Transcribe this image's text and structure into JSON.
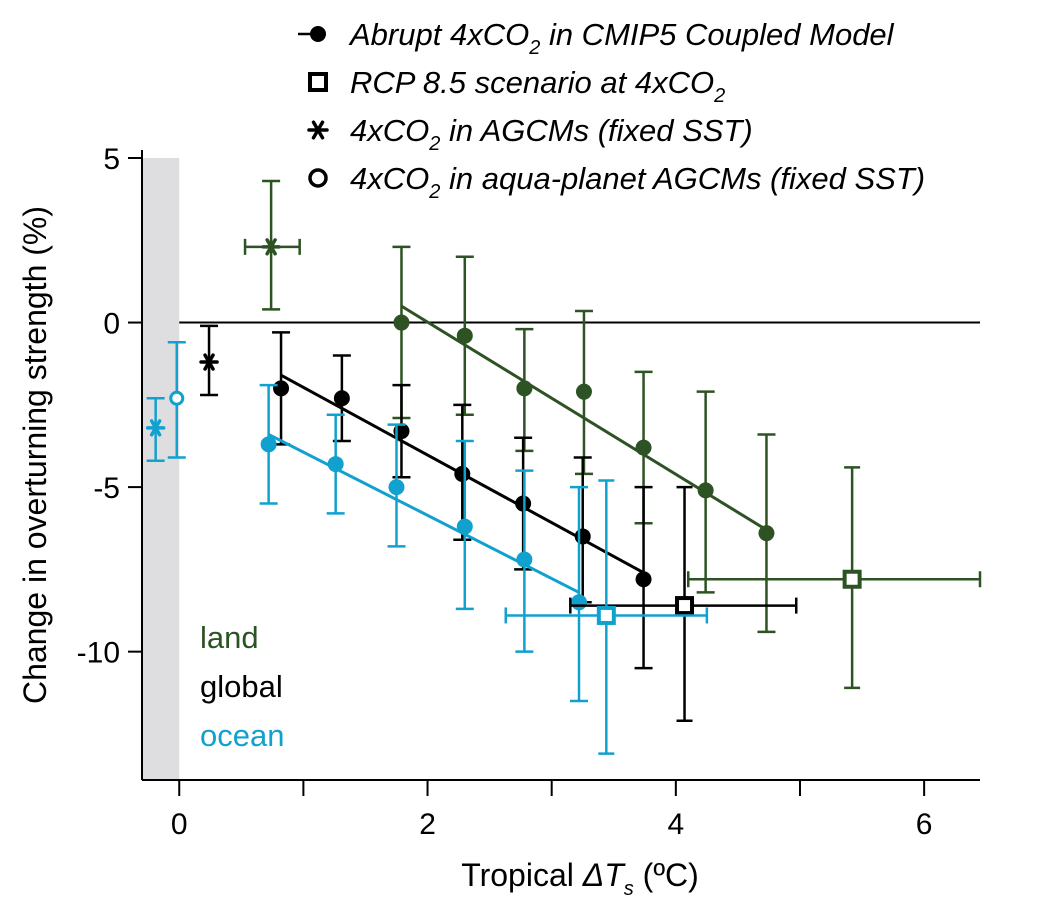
{
  "chart_data": {
    "type": "scatter",
    "xlabel_main": "Tropical ",
    "xlabel_delta": "ΔT",
    "xlabel_sub": "s",
    "xlabel_unit": " (ºC)",
    "ylabel": "Change in overturning strength (%)",
    "xlim": [
      -0.3,
      6.45
    ],
    "ylim": [
      -13.9,
      5.0
    ],
    "x_ticks": [
      0,
      1,
      2,
      3,
      4,
      5,
      6
    ],
    "x_tick_labels": [
      {
        "value": 0,
        "label": "0"
      },
      {
        "value": 2,
        "label": "2"
      },
      {
        "value": 4,
        "label": "4"
      },
      {
        "value": 6,
        "label": "6"
      }
    ],
    "y_ticks": [
      {
        "value": 5,
        "label": "5"
      },
      {
        "value": 0,
        "label": "0"
      },
      {
        "value": -5,
        "label": "-5"
      },
      {
        "value": -10,
        "label": "-10"
      }
    ],
    "zero_line": 0,
    "shaded_band": {
      "x0": -0.3,
      "x1": 0
    },
    "colors": {
      "land": "#2d5223",
      "global": "#000000",
      "ocean": "#11a1cf",
      "shade": "#dedee0"
    },
    "legend": [
      {
        "marker": "line-dot",
        "text": "Abrupt 4xCO",
        "sub": "2",
        "after": " in CMIP5 Coupled Model"
      },
      {
        "marker": "square",
        "text": "RCP 8.5 scenario at 4xCO",
        "sub": "2",
        "after": ""
      },
      {
        "marker": "star",
        "text": "4xCO",
        "sub": "2",
        "after": "  in AGCMs (fixed SST)"
      },
      {
        "marker": "circle",
        "text": "4xCO",
        "sub": "2",
        "after": "  in aqua-planet AGCMs (fixed SST)"
      }
    ],
    "region_labels": [
      {
        "key": "land",
        "text": "land"
      },
      {
        "key": "global",
        "text": "global"
      },
      {
        "key": "ocean",
        "text": "ocean"
      }
    ],
    "series": [
      {
        "key": "land",
        "kind": "coupled",
        "points": [
          {
            "x": 1.79,
            "y": 0.0,
            "low": -2.9,
            "high": 2.3
          },
          {
            "x": 2.3,
            "y": -0.4,
            "low": -2.8,
            "high": 2.0
          },
          {
            "x": 2.78,
            "y": -2.0,
            "low": -3.9,
            "high": -0.2
          },
          {
            "x": 3.26,
            "y": -2.1,
            "low": -4.6,
            "high": 0.35
          },
          {
            "x": 3.74,
            "y": -3.8,
            "low": -6.1,
            "high": -1.5
          },
          {
            "x": 4.24,
            "y": -5.1,
            "low": -8.2,
            "high": -2.1
          },
          {
            "x": 4.73,
            "y": -6.4,
            "low": -9.4,
            "high": -3.4
          }
        ],
        "fit": [
          [
            1.79,
            0.5
          ],
          [
            4.73,
            -6.3
          ]
        ]
      },
      {
        "key": "global",
        "kind": "coupled",
        "points": [
          {
            "x": 0.82,
            "y": -2.0,
            "low": -3.7,
            "high": -0.3
          },
          {
            "x": 1.31,
            "y": -2.3,
            "low": -3.6,
            "high": -1.0
          },
          {
            "x": 1.79,
            "y": -3.3,
            "low": -4.7,
            "high": -1.9
          },
          {
            "x": 2.28,
            "y": -4.6,
            "low": -6.6,
            "high": -2.5
          },
          {
            "x": 2.77,
            "y": -5.5,
            "low": -7.5,
            "high": -3.5
          },
          {
            "x": 3.25,
            "y": -6.5,
            "low": -8.5,
            "high": -4.1
          },
          {
            "x": 3.74,
            "y": -7.8,
            "low": -10.5,
            "high": -5.0
          }
        ],
        "fit": [
          [
            0.82,
            -1.6
          ],
          [
            3.74,
            -7.6
          ]
        ]
      },
      {
        "key": "ocean",
        "kind": "coupled",
        "points": [
          {
            "x": 0.72,
            "y": -3.7,
            "low": -5.5,
            "high": -1.9
          },
          {
            "x": 1.26,
            "y": -4.3,
            "low": -5.8,
            "high": -2.8
          },
          {
            "x": 1.75,
            "y": -5.0,
            "low": -6.8,
            "high": -3.1
          },
          {
            "x": 2.3,
            "y": -6.2,
            "low": -8.7,
            "high": -3.6
          },
          {
            "x": 2.78,
            "y": -7.2,
            "low": -10.0,
            "high": -4.5
          },
          {
            "x": 3.22,
            "y": -8.5,
            "low": -11.5,
            "high": -5.0
          }
        ],
        "fit": [
          [
            0.72,
            -3.4
          ],
          [
            3.22,
            -8.2
          ]
        ]
      }
    ],
    "rcp": [
      {
        "key": "land",
        "x": 5.42,
        "y": -7.8,
        "xlow": 4.1,
        "xhigh": 6.45,
        "ylow": -11.1,
        "yhigh": -4.4
      },
      {
        "key": "global",
        "x": 4.07,
        "y": -8.6,
        "xlow": 3.15,
        "xhigh": 4.97,
        "ylow": -12.1,
        "yhigh": -5.0
      },
      {
        "key": "ocean",
        "x": 3.44,
        "y": -8.9,
        "xlow": 2.63,
        "xhigh": 4.25,
        "ylow": -13.1,
        "yhigh": -4.8
      }
    ],
    "agcm": [
      {
        "key": "land",
        "x": 0.74,
        "y": 2.3,
        "xlow": 0.53,
        "xhigh": 0.97,
        "ylow": 0.4,
        "yhigh": 4.3
      },
      {
        "key": "global",
        "x": 0.24,
        "y": -1.2,
        "xlow": 0.24,
        "xhigh": 0.24,
        "ylow": -2.2,
        "yhigh": -0.1
      },
      {
        "key": "ocean",
        "x": -0.19,
        "y": -3.2,
        "xlow": -0.19,
        "xhigh": -0.19,
        "ylow": -4.2,
        "yhigh": -2.3
      }
    ],
    "aqua": [
      {
        "key": "ocean",
        "x": -0.02,
        "y": -2.3,
        "ylow": -4.1,
        "yhigh": -0.6
      }
    ]
  }
}
